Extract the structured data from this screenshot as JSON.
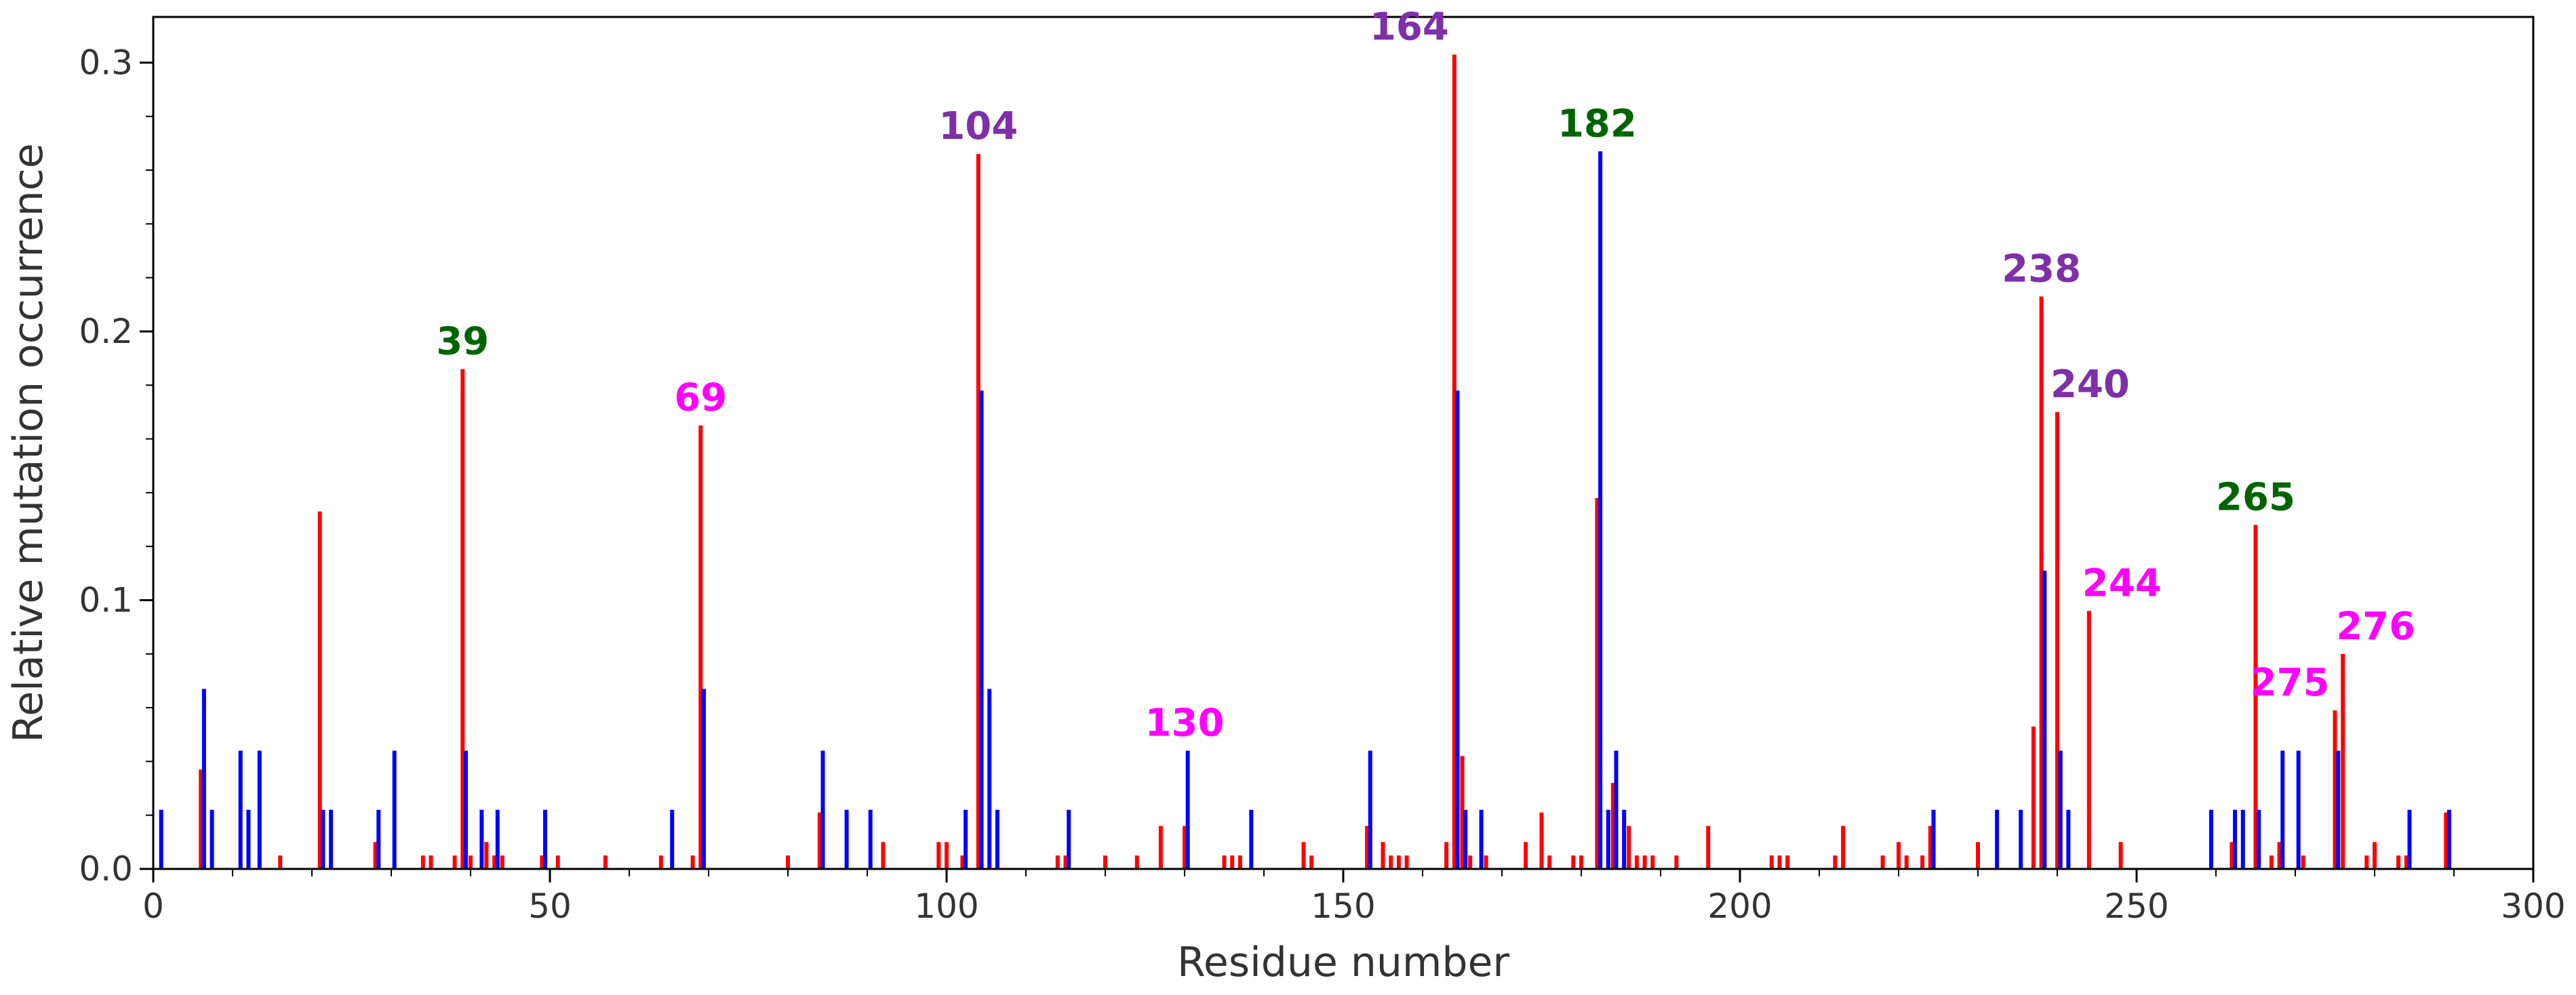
{
  "chart_data": {
    "type": "bar",
    "xlabel": "Residue number",
    "ylabel": "Relative mutation occurrence",
    "xlim": [
      0,
      300
    ],
    "ylim": [
      0,
      0.317
    ],
    "x_ticks": [
      0,
      50,
      100,
      150,
      200,
      250,
      300
    ],
    "y_ticks": [
      0.0,
      0.1,
      0.2,
      0.3
    ],
    "x_minor_step": 10,
    "y_minor_step": 0.02,
    "grid": false,
    "series": [
      {
        "name": "red",
        "color": "#ff0000",
        "points": [
          {
            "x": 6,
            "y": 0.037
          },
          {
            "x": 21,
            "y": 0.133
          },
          {
            "x": 16,
            "y": 0.005
          },
          {
            "x": 28,
            "y": 0.01
          },
          {
            "x": 34,
            "y": 0.005
          },
          {
            "x": 35,
            "y": 0.005
          },
          {
            "x": 38,
            "y": 0.005
          },
          {
            "x": 39,
            "y": 0.186
          },
          {
            "x": 40,
            "y": 0.005
          },
          {
            "x": 42,
            "y": 0.01
          },
          {
            "x": 43,
            "y": 0.005
          },
          {
            "x": 44,
            "y": 0.005
          },
          {
            "x": 49,
            "y": 0.005
          },
          {
            "x": 51,
            "y": 0.005
          },
          {
            "x": 57,
            "y": 0.005
          },
          {
            "x": 64,
            "y": 0.005
          },
          {
            "x": 68,
            "y": 0.005
          },
          {
            "x": 69,
            "y": 0.165
          },
          {
            "x": 80,
            "y": 0.005
          },
          {
            "x": 84,
            "y": 0.021
          },
          {
            "x": 92,
            "y": 0.01
          },
          {
            "x": 99,
            "y": 0.01
          },
          {
            "x": 100,
            "y": 0.01
          },
          {
            "x": 102,
            "y": 0.005
          },
          {
            "x": 104,
            "y": 0.266
          },
          {
            "x": 114,
            "y": 0.005
          },
          {
            "x": 115,
            "y": 0.005
          },
          {
            "x": 120,
            "y": 0.005
          },
          {
            "x": 124,
            "y": 0.005
          },
          {
            "x": 127,
            "y": 0.016
          },
          {
            "x": 130,
            "y": 0.016
          },
          {
            "x": 135,
            "y": 0.005
          },
          {
            "x": 136,
            "y": 0.005
          },
          {
            "x": 137,
            "y": 0.005
          },
          {
            "x": 145,
            "y": 0.01
          },
          {
            "x": 146,
            "y": 0.005
          },
          {
            "x": 153,
            "y": 0.016
          },
          {
            "x": 155,
            "y": 0.01
          },
          {
            "x": 156,
            "y": 0.005
          },
          {
            "x": 157,
            "y": 0.005
          },
          {
            "x": 158,
            "y": 0.005
          },
          {
            "x": 163,
            "y": 0.01
          },
          {
            "x": 164,
            "y": 0.303
          },
          {
            "x": 165,
            "y": 0.042
          },
          {
            "x": 166,
            "y": 0.005
          },
          {
            "x": 168,
            "y": 0.005
          },
          {
            "x": 173,
            "y": 0.01
          },
          {
            "x": 175,
            "y": 0.021
          },
          {
            "x": 176,
            "y": 0.005
          },
          {
            "x": 179,
            "y": 0.005
          },
          {
            "x": 180,
            "y": 0.005
          },
          {
            "x": 182,
            "y": 0.138
          },
          {
            "x": 184,
            "y": 0.032
          },
          {
            "x": 186,
            "y": 0.016
          },
          {
            "x": 187,
            "y": 0.005
          },
          {
            "x": 188,
            "y": 0.005
          },
          {
            "x": 189,
            "y": 0.005
          },
          {
            "x": 192,
            "y": 0.005
          },
          {
            "x": 196,
            "y": 0.016
          },
          {
            "x": 204,
            "y": 0.005
          },
          {
            "x": 205,
            "y": 0.005
          },
          {
            "x": 206,
            "y": 0.005
          },
          {
            "x": 212,
            "y": 0.005
          },
          {
            "x": 213,
            "y": 0.016
          },
          {
            "x": 218,
            "y": 0.005
          },
          {
            "x": 220,
            "y": 0.01
          },
          {
            "x": 221,
            "y": 0.005
          },
          {
            "x": 223,
            "y": 0.005
          },
          {
            "x": 224,
            "y": 0.016
          },
          {
            "x": 230,
            "y": 0.01
          },
          {
            "x": 237,
            "y": 0.053
          },
          {
            "x": 238,
            "y": 0.213
          },
          {
            "x": 240,
            "y": 0.17
          },
          {
            "x": 244,
            "y": 0.096
          },
          {
            "x": 248,
            "y": 0.01
          },
          {
            "x": 262,
            "y": 0.01
          },
          {
            "x": 265,
            "y": 0.128
          },
          {
            "x": 267,
            "y": 0.005
          },
          {
            "x": 268,
            "y": 0.01
          },
          {
            "x": 271,
            "y": 0.005
          },
          {
            "x": 275,
            "y": 0.059
          },
          {
            "x": 276,
            "y": 0.08
          },
          {
            "x": 279,
            "y": 0.005
          },
          {
            "x": 280,
            "y": 0.01
          },
          {
            "x": 283,
            "y": 0.005
          },
          {
            "x": 284,
            "y": 0.005
          },
          {
            "x": 289,
            "y": 0.021
          }
        ]
      },
      {
        "name": "blue",
        "color": "#0000ff",
        "points": [
          {
            "x": 1,
            "y": 0.022
          },
          {
            "x": 6.4,
            "y": 0.067
          },
          {
            "x": 7.4,
            "y": 0.022
          },
          {
            "x": 11,
            "y": 0.044
          },
          {
            "x": 12,
            "y": 0.022
          },
          {
            "x": 13.4,
            "y": 0.044
          },
          {
            "x": 21.4,
            "y": 0.022
          },
          {
            "x": 22.4,
            "y": 0.022
          },
          {
            "x": 28.4,
            "y": 0.022
          },
          {
            "x": 30.4,
            "y": 0.044
          },
          {
            "x": 39.4,
            "y": 0.044
          },
          {
            "x": 41.4,
            "y": 0.022
          },
          {
            "x": 43.4,
            "y": 0.022
          },
          {
            "x": 49.4,
            "y": 0.022
          },
          {
            "x": 65.4,
            "y": 0.022
          },
          {
            "x": 69.4,
            "y": 0.067
          },
          {
            "x": 84.4,
            "y": 0.044
          },
          {
            "x": 87.4,
            "y": 0.022
          },
          {
            "x": 90.4,
            "y": 0.022
          },
          {
            "x": 102.4,
            "y": 0.022
          },
          {
            "x": 104.4,
            "y": 0.178
          },
          {
            "x": 105.4,
            "y": 0.067
          },
          {
            "x": 106.4,
            "y": 0.022
          },
          {
            "x": 115.4,
            "y": 0.022
          },
          {
            "x": 130.4,
            "y": 0.044
          },
          {
            "x": 138.4,
            "y": 0.022
          },
          {
            "x": 153.4,
            "y": 0.044
          },
          {
            "x": 164.4,
            "y": 0.178
          },
          {
            "x": 165.4,
            "y": 0.022
          },
          {
            "x": 167.4,
            "y": 0.022
          },
          {
            "x": 182.4,
            "y": 0.267
          },
          {
            "x": 183.4,
            "y": 0.022
          },
          {
            "x": 184.4,
            "y": 0.044
          },
          {
            "x": 185.4,
            "y": 0.022
          },
          {
            "x": 224.4,
            "y": 0.022
          },
          {
            "x": 232.4,
            "y": 0.022
          },
          {
            "x": 235.4,
            "y": 0.022
          },
          {
            "x": 238.4,
            "y": 0.111
          },
          {
            "x": 240.4,
            "y": 0.044
          },
          {
            "x": 241.4,
            "y": 0.022
          },
          {
            "x": 259.4,
            "y": 0.022
          },
          {
            "x": 262.4,
            "y": 0.022
          },
          {
            "x": 263.4,
            "y": 0.022
          },
          {
            "x": 265.4,
            "y": 0.022
          },
          {
            "x": 268.4,
            "y": 0.044
          },
          {
            "x": 270.4,
            "y": 0.044
          },
          {
            "x": 275.4,
            "y": 0.044
          },
          {
            "x": 284.4,
            "y": 0.022
          },
          {
            "x": 289.4,
            "y": 0.022
          }
        ]
      }
    ],
    "annotations": [
      {
        "text": "39",
        "x": 39,
        "y": 0.186,
        "color": "#006400"
      },
      {
        "text": "69",
        "x": 69,
        "y": 0.165,
        "color": "#ff00ff"
      },
      {
        "text": "104",
        "x": 104,
        "y": 0.266,
        "color": "#7f2fa8"
      },
      {
        "text": "130",
        "x": 130,
        "y": 0.044,
        "color": "#ff00ff"
      },
      {
        "text": "164",
        "x": 164,
        "y": 0.303,
        "color": "#7f2fa8",
        "anchor": "end"
      },
      {
        "text": "182",
        "x": 182,
        "y": 0.267,
        "color": "#006400"
      },
      {
        "text": "238",
        "x": 238,
        "y": 0.213,
        "color": "#7f2fa8"
      },
      {
        "text": "240",
        "x": 240,
        "y": 0.17,
        "color": "#7f2fa8",
        "anchor": "start"
      },
      {
        "text": "244",
        "x": 244,
        "y": 0.096,
        "color": "#ff00ff",
        "anchor": "start"
      },
      {
        "text": "265",
        "x": 265,
        "y": 0.128,
        "color": "#006400"
      },
      {
        "text": "275",
        "x": 275,
        "y": 0.059,
        "color": "#ff00ff",
        "anchor": "end"
      },
      {
        "text": "276",
        "x": 276,
        "y": 0.08,
        "color": "#ff00ff",
        "anchor": "start"
      }
    ]
  }
}
